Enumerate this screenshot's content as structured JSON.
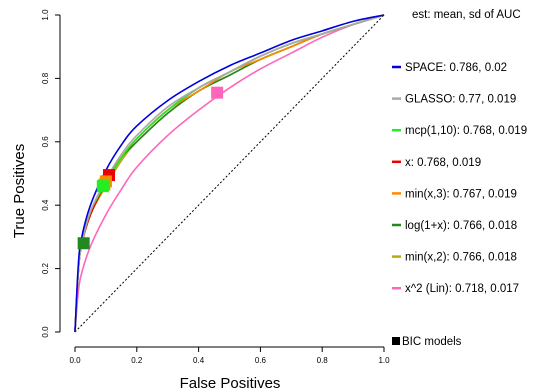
{
  "chart_data": {
    "type": "line",
    "title": "",
    "xlabel": "False Positives",
    "ylabel": "True Positives",
    "xlim": [
      0,
      1
    ],
    "ylim": [
      0,
      1
    ],
    "x_ticks": [
      "0.0",
      "0.2",
      "0.4",
      "0.6",
      "0.8",
      "1.0"
    ],
    "y_ticks": [
      "0.0",
      "0.2",
      "0.4",
      "0.6",
      "0.8",
      "1.0"
    ],
    "grid": false,
    "legend_title": "est: mean, sd of AUC",
    "legend_position": "right",
    "series": [
      {
        "name": "SPACE: 0.786, 0.02",
        "color": "#0000dd",
        "x": [
          0,
          0.01,
          0.02,
          0.05,
          0.1,
          0.15,
          0.2,
          0.3,
          0.4,
          0.5,
          0.6,
          0.7,
          0.8,
          0.9,
          1.0
        ],
        "y": [
          0,
          0.2,
          0.29,
          0.4,
          0.51,
          0.59,
          0.65,
          0.73,
          0.79,
          0.84,
          0.88,
          0.92,
          0.95,
          0.98,
          1.0
        ]
      },
      {
        "name": "GLASSO: 0.77, 0.019",
        "color": "#aaaaaa",
        "x": [
          0,
          0.01,
          0.02,
          0.05,
          0.1,
          0.15,
          0.2,
          0.3,
          0.4,
          0.5,
          0.6,
          0.7,
          0.8,
          0.9,
          1.0
        ],
        "y": [
          0,
          0.18,
          0.27,
          0.38,
          0.48,
          0.56,
          0.62,
          0.71,
          0.77,
          0.82,
          0.87,
          0.91,
          0.94,
          0.97,
          1.0
        ]
      },
      {
        "name": "mcp(1,10): 0.768, 0.019",
        "color": "#22ee22",
        "x": [
          0,
          0.01,
          0.02,
          0.05,
          0.1,
          0.15,
          0.2,
          0.3,
          0.4,
          0.5,
          0.6,
          0.7,
          0.8,
          0.9,
          1.0
        ],
        "y": [
          0,
          0.18,
          0.27,
          0.38,
          0.47,
          0.55,
          0.61,
          0.7,
          0.77,
          0.82,
          0.87,
          0.91,
          0.94,
          0.97,
          1.0
        ]
      },
      {
        "name": "x: 0.768, 0.019",
        "color": "#ee0000",
        "x": [
          0,
          0.01,
          0.02,
          0.05,
          0.1,
          0.15,
          0.2,
          0.3,
          0.4,
          0.5,
          0.6,
          0.7,
          0.8,
          0.9,
          1.0
        ],
        "y": [
          0,
          0.18,
          0.27,
          0.37,
          0.47,
          0.55,
          0.61,
          0.7,
          0.77,
          0.82,
          0.87,
          0.91,
          0.94,
          0.97,
          1.0
        ]
      },
      {
        "name": "min(x,3): 0.767, 0.019",
        "color": "#ff8800",
        "x": [
          0,
          0.01,
          0.02,
          0.05,
          0.1,
          0.15,
          0.2,
          0.3,
          0.4,
          0.5,
          0.6,
          0.7,
          0.8,
          0.9,
          1.0
        ],
        "y": [
          0,
          0.18,
          0.27,
          0.37,
          0.47,
          0.55,
          0.61,
          0.7,
          0.76,
          0.82,
          0.86,
          0.9,
          0.94,
          0.97,
          1.0
        ]
      },
      {
        "name": "log(1+x): 0.766, 0.018",
        "color": "#228822",
        "x": [
          0,
          0.01,
          0.02,
          0.05,
          0.1,
          0.15,
          0.2,
          0.3,
          0.4,
          0.5,
          0.6,
          0.7,
          0.8,
          0.9,
          1.0
        ],
        "y": [
          0,
          0.18,
          0.27,
          0.37,
          0.47,
          0.55,
          0.6,
          0.69,
          0.76,
          0.81,
          0.86,
          0.9,
          0.94,
          0.97,
          1.0
        ]
      },
      {
        "name": "min(x,2): 0.766, 0.018",
        "color": "#bbaa11",
        "x": [
          0,
          0.01,
          0.02,
          0.05,
          0.1,
          0.15,
          0.2,
          0.3,
          0.4,
          0.5,
          0.6,
          0.7,
          0.8,
          0.9,
          1.0
        ],
        "y": [
          0,
          0.18,
          0.27,
          0.37,
          0.46,
          0.54,
          0.6,
          0.69,
          0.76,
          0.81,
          0.86,
          0.9,
          0.94,
          0.97,
          1.0
        ]
      },
      {
        "name": "x^2 (Lin): 0.718, 0.017",
        "color": "#ff66bb",
        "x": [
          0,
          0.01,
          0.02,
          0.05,
          0.1,
          0.15,
          0.2,
          0.3,
          0.4,
          0.5,
          0.6,
          0.7,
          0.8,
          0.9,
          1.0
        ],
        "y": [
          0,
          0.12,
          0.18,
          0.27,
          0.37,
          0.45,
          0.52,
          0.62,
          0.7,
          0.77,
          0.83,
          0.88,
          0.93,
          0.97,
          1.0
        ]
      }
    ],
    "bic_models_label": "BIC models",
    "bic_models": [
      {
        "color": "#ee0000",
        "x": 0.11,
        "y": 0.495
      },
      {
        "color": "#ff8800",
        "x": 0.1,
        "y": 0.475
      },
      {
        "color": "#bbaa11",
        "x": 0.095,
        "y": 0.465
      },
      {
        "color": "#22ee22",
        "x": 0.09,
        "y": 0.46
      },
      {
        "color": "#228822",
        "x": 0.028,
        "y": 0.28
      },
      {
        "color": "#ff66bb",
        "x": 0.46,
        "y": 0.755
      }
    ],
    "diagonal": true
  }
}
